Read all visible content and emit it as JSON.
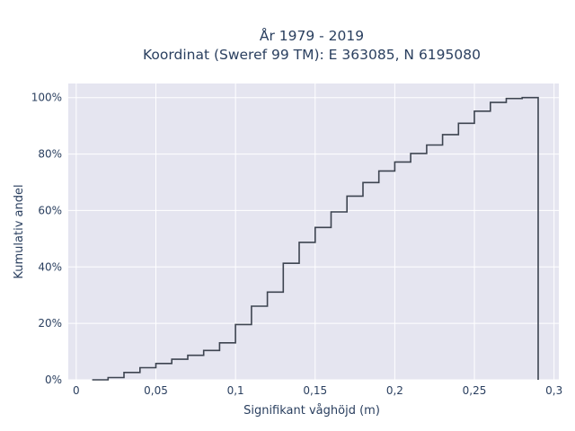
{
  "chart_data": {
    "type": "line",
    "step": true,
    "title_lines": [
      "År 1979 - 2019",
      "Koordinat (Sweref 99 TM): E 363085, N 6195080"
    ],
    "xlabel": "Signifikant våghöjd (m)",
    "ylabel": "Kumulativ andel",
    "xlim": [
      -0.005,
      0.303
    ],
    "ylim": [
      0,
      1.05
    ],
    "x_ticks": [
      0,
      0.05,
      0.1,
      0.15,
      0.2,
      0.25,
      0.3
    ],
    "x_tick_labels": [
      "0",
      "0,05",
      "0,1",
      "0,15",
      "0,2",
      "0,25",
      "0,3"
    ],
    "y_ticks": [
      0,
      0.2,
      0.4,
      0.6,
      0.8,
      1.0
    ],
    "y_tick_labels": [
      "0%",
      "20%",
      "40%",
      "60%",
      "80%",
      "100%"
    ],
    "grid": true,
    "colors": {
      "plot_bg": "#e5e5f0",
      "grid": "#ffffff",
      "line": "#3d4450",
      "text": "#2a3f5f"
    },
    "series": [
      {
        "x": [
          0.01,
          0.02,
          0.03,
          0.04,
          0.05,
          0.06,
          0.07,
          0.08,
          0.09,
          0.1,
          0.11,
          0.12,
          0.13,
          0.14,
          0.15,
          0.16,
          0.17,
          0.18,
          0.19,
          0.2,
          0.21,
          0.22,
          0.23,
          0.24,
          0.25,
          0.26,
          0.27,
          0.28,
          0.29,
          0.29
        ],
        "y": [
          0.0,
          0.008,
          0.026,
          0.043,
          0.058,
          0.073,
          0.087,
          0.104,
          0.131,
          0.196,
          0.261,
          0.311,
          0.413,
          0.487,
          0.54,
          0.595,
          0.651,
          0.699,
          0.74,
          0.772,
          0.802,
          0.832,
          0.869,
          0.909,
          0.952,
          0.983,
          0.997,
          1.0,
          1.0,
          0.0
        ]
      }
    ]
  }
}
